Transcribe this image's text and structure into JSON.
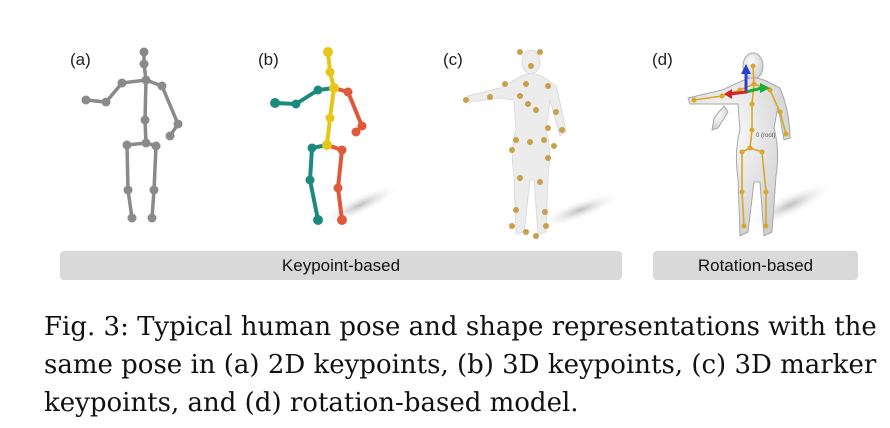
{
  "panels": [
    {
      "label": "(a)"
    },
    {
      "label": "(b)"
    },
    {
      "label": "(c)"
    },
    {
      "label": "(d)"
    }
  ],
  "categories": {
    "keypoint": "Keypoint-based",
    "rotation": "Rotation-based"
  },
  "root_label": "0 (root)",
  "caption": {
    "prefix": "Fig. 3:",
    "text": "Fig. 3: Typical human pose and shape representations with the same pose in (a) 2D keypoints, (b) 3D keypoints, (c) 3D marker keypoints, and (d) rotation-based model."
  },
  "colors": {
    "skeleton_2d": "#8a8a8a",
    "spine": "#e6c619",
    "left_limbs": "#1b8a7e",
    "right_limbs": "#e0583a",
    "markers": "#c9a04a",
    "body_mesh": "#e4e4e4",
    "bar": "#d9d9d9"
  }
}
